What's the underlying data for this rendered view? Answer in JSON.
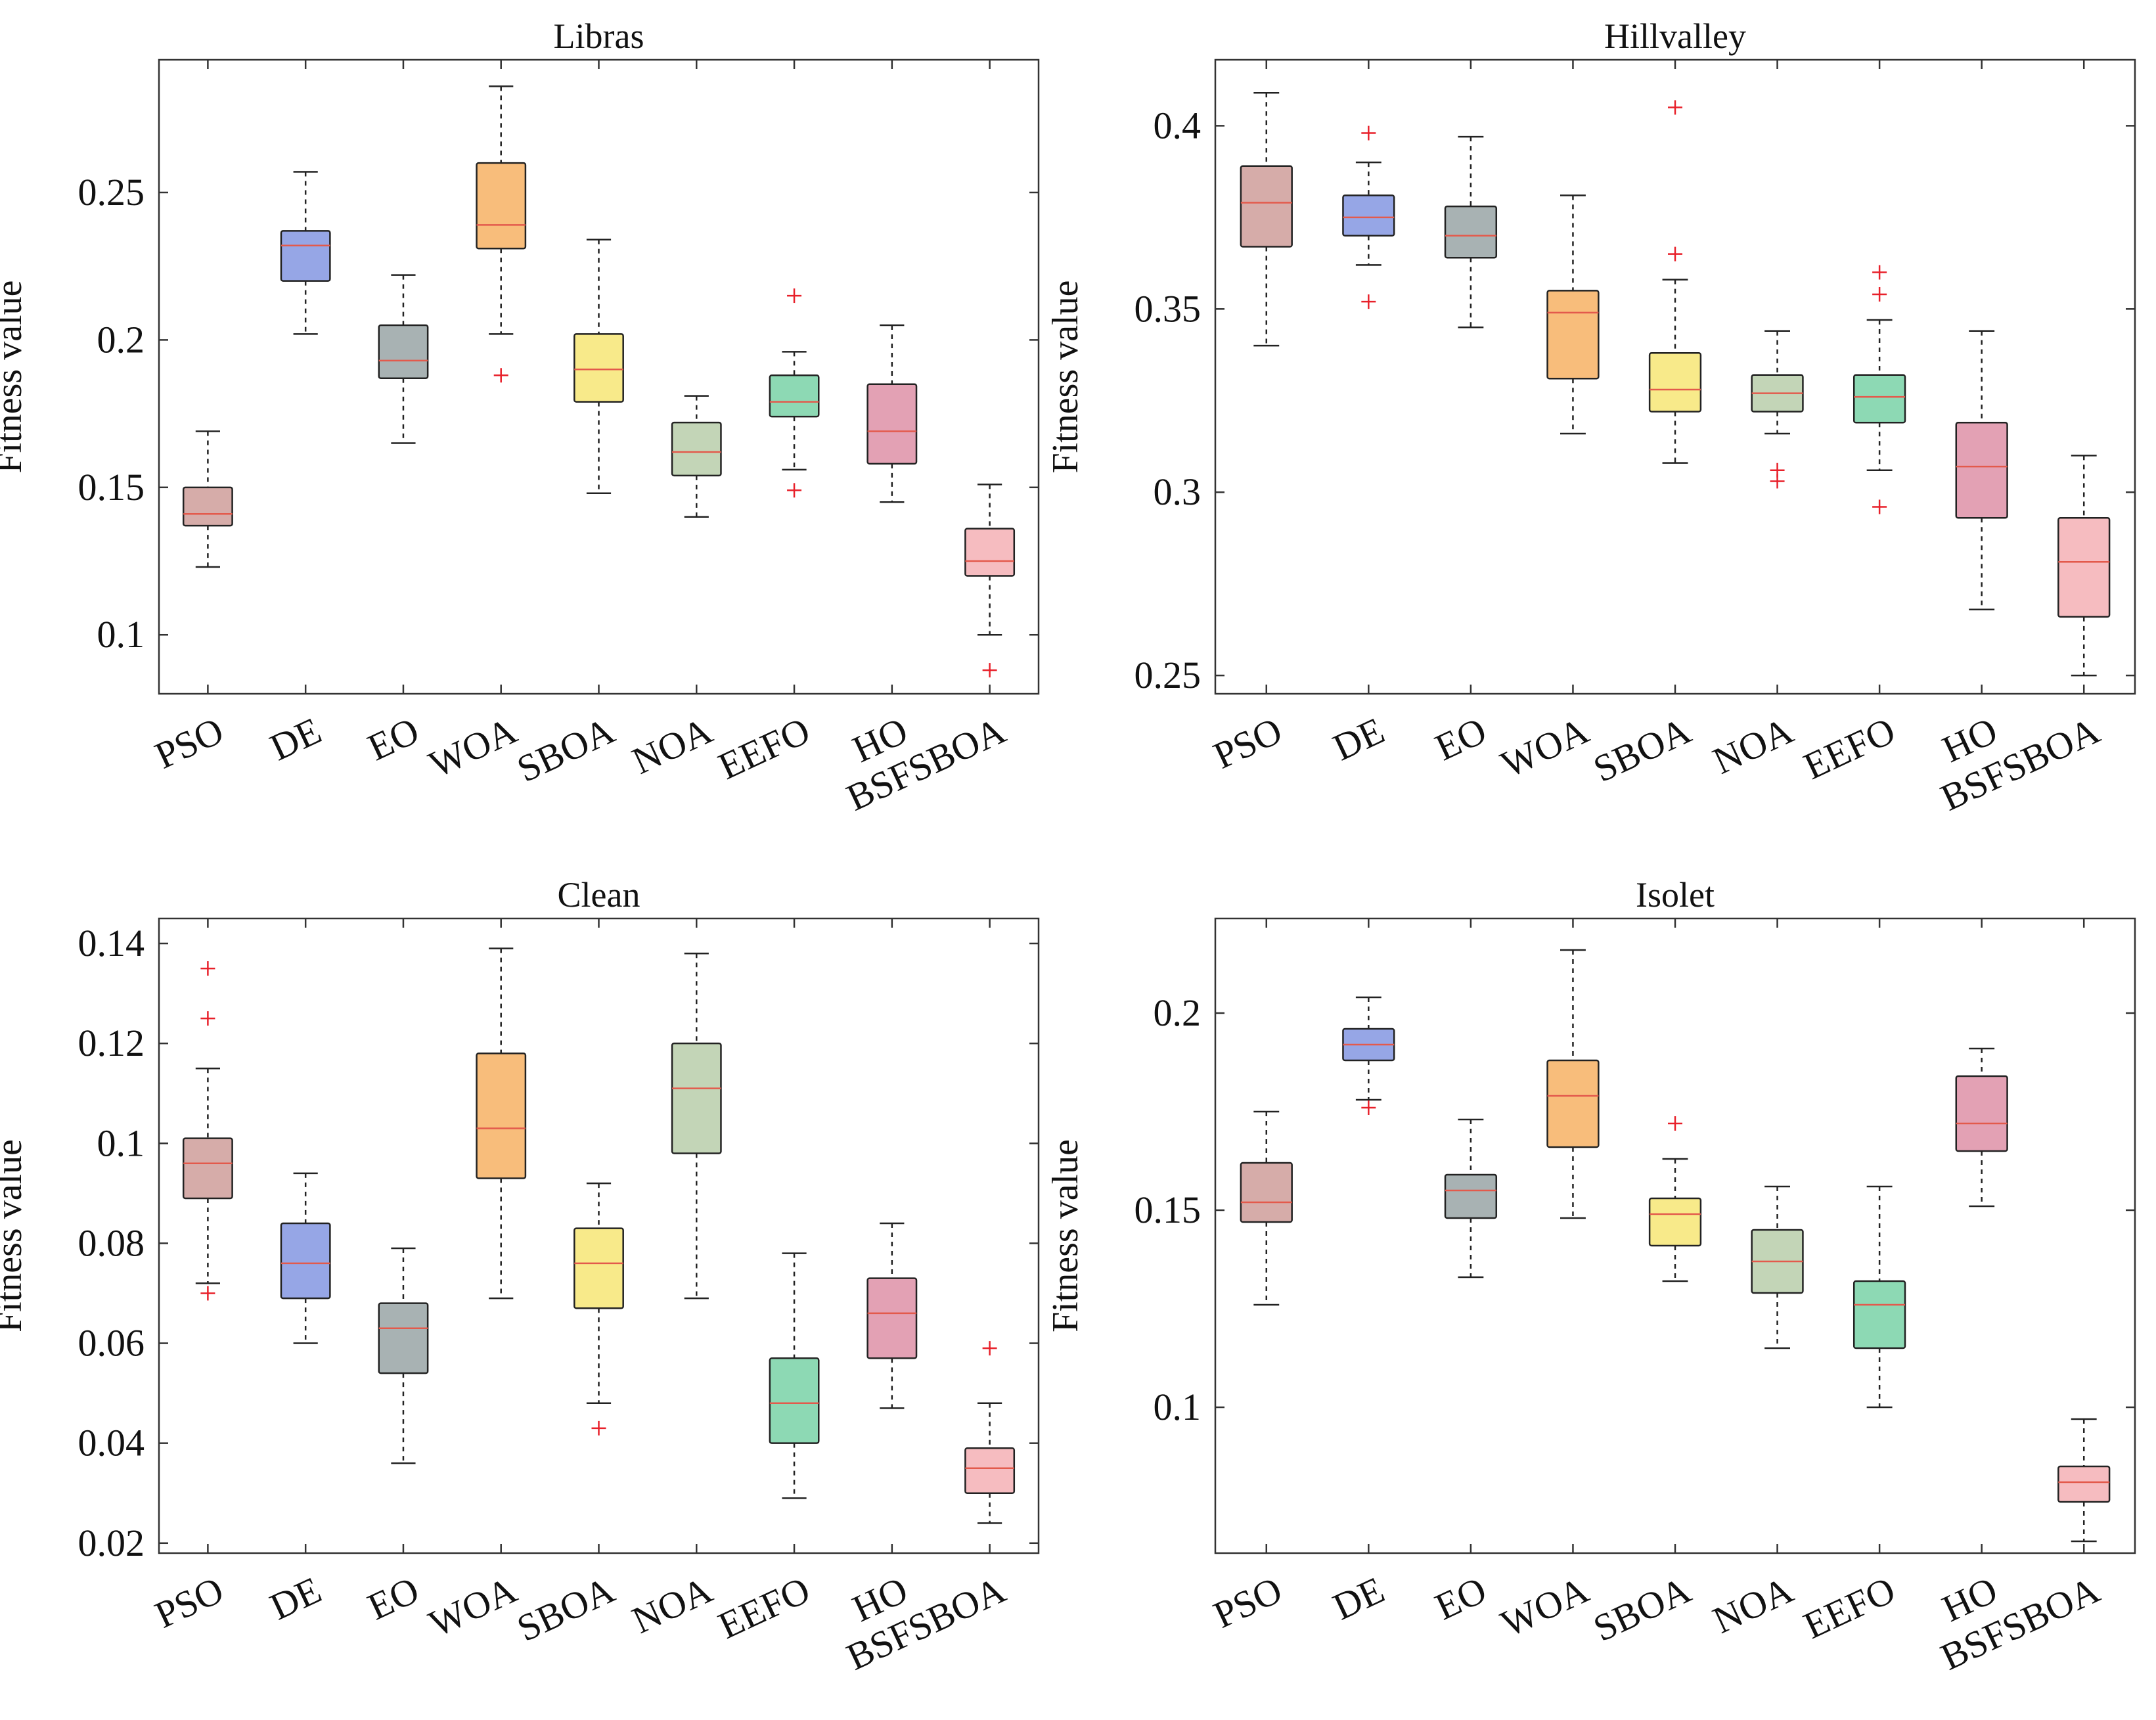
{
  "figure": {
    "ylabel": "Fitness value"
  },
  "chart_data": [
    {
      "type": "box",
      "title": "Libras",
      "ylabel": "Fitness value",
      "ylim": [
        0.08,
        0.295
      ],
      "yticks": [
        0.1,
        0.15,
        0.2,
        0.25
      ],
      "ytick_labels": [
        "0.1",
        "0.15",
        "0.2",
        "0.25"
      ],
      "categories": [
        "PSO",
        "DE",
        "EO",
        "WOA",
        "SBOA",
        "NOA",
        "EEFO",
        "HO",
        "BSFSBOA"
      ],
      "boxes": [
        {
          "name": "PSO",
          "whisker_low": 0.123,
          "q1": 0.137,
          "median": 0.141,
          "q3": 0.15,
          "whisker_high": 0.169,
          "outliers": []
        },
        {
          "name": "DE",
          "whisker_low": 0.202,
          "q1": 0.22,
          "median": 0.232,
          "q3": 0.237,
          "whisker_high": 0.257,
          "outliers": []
        },
        {
          "name": "EO",
          "whisker_low": 0.165,
          "q1": 0.187,
          "median": 0.193,
          "q3": 0.205,
          "whisker_high": 0.222,
          "outliers": []
        },
        {
          "name": "WOA",
          "whisker_low": 0.202,
          "q1": 0.231,
          "median": 0.239,
          "q3": 0.26,
          "whisker_high": 0.286,
          "outliers": [
            0.188
          ]
        },
        {
          "name": "SBOA",
          "whisker_low": 0.148,
          "q1": 0.179,
          "median": 0.19,
          "q3": 0.202,
          "whisker_high": 0.234,
          "outliers": []
        },
        {
          "name": "NOA",
          "whisker_low": 0.14,
          "q1": 0.154,
          "median": 0.162,
          "q3": 0.172,
          "whisker_high": 0.181,
          "outliers": []
        },
        {
          "name": "EEFO",
          "whisker_low": 0.156,
          "q1": 0.174,
          "median": 0.179,
          "q3": 0.188,
          "whisker_high": 0.196,
          "outliers": [
            0.215,
            0.149
          ]
        },
        {
          "name": "HO",
          "whisker_low": 0.145,
          "q1": 0.158,
          "median": 0.169,
          "q3": 0.185,
          "whisker_high": 0.205,
          "outliers": []
        },
        {
          "name": "BSFSBOA",
          "whisker_low": 0.1,
          "q1": 0.12,
          "median": 0.125,
          "q3": 0.136,
          "whisker_high": 0.151,
          "outliers": [
            0.088
          ]
        }
      ]
    },
    {
      "type": "box",
      "title": "Hillvalley",
      "ylabel": "Fitness value",
      "ylim": [
        0.245,
        0.418
      ],
      "yticks": [
        0.25,
        0.3,
        0.35,
        0.4
      ],
      "ytick_labels": [
        "0.25",
        "0.3",
        "0.35",
        "0.4"
      ],
      "categories": [
        "PSO",
        "DE",
        "EO",
        "WOA",
        "SBOA",
        "NOA",
        "EEFO",
        "HO",
        "BSFSBOA"
      ],
      "boxes": [
        {
          "name": "PSO",
          "whisker_low": 0.34,
          "q1": 0.367,
          "median": 0.379,
          "q3": 0.389,
          "whisker_high": 0.409,
          "outliers": []
        },
        {
          "name": "DE",
          "whisker_low": 0.362,
          "q1": 0.37,
          "median": 0.375,
          "q3": 0.381,
          "whisker_high": 0.39,
          "outliers": [
            0.398,
            0.352
          ]
        },
        {
          "name": "EO",
          "whisker_low": 0.345,
          "q1": 0.364,
          "median": 0.37,
          "q3": 0.378,
          "whisker_high": 0.397,
          "outliers": []
        },
        {
          "name": "WOA",
          "whisker_low": 0.316,
          "q1": 0.331,
          "median": 0.349,
          "q3": 0.355,
          "whisker_high": 0.381,
          "outliers": []
        },
        {
          "name": "SBOA",
          "whisker_low": 0.308,
          "q1": 0.322,
          "median": 0.328,
          "q3": 0.338,
          "whisker_high": 0.358,
          "outliers": [
            0.405,
            0.365
          ]
        },
        {
          "name": "NOA",
          "whisker_low": 0.316,
          "q1": 0.322,
          "median": 0.327,
          "q3": 0.332,
          "whisker_high": 0.344,
          "outliers": [
            0.306,
            0.303
          ]
        },
        {
          "name": "EEFO",
          "whisker_low": 0.306,
          "q1": 0.319,
          "median": 0.326,
          "q3": 0.332,
          "whisker_high": 0.347,
          "outliers": [
            0.36,
            0.354,
            0.296
          ]
        },
        {
          "name": "HO",
          "whisker_low": 0.268,
          "q1": 0.293,
          "median": 0.307,
          "q3": 0.319,
          "whisker_high": 0.344,
          "outliers": []
        },
        {
          "name": "BSFSBOA",
          "whisker_low": 0.25,
          "q1": 0.266,
          "median": 0.281,
          "q3": 0.293,
          "whisker_high": 0.31,
          "outliers": []
        }
      ]
    },
    {
      "type": "box",
      "title": "Clean",
      "ylabel": "Fitness value",
      "ylim": [
        0.018,
        0.145
      ],
      "yticks": [
        0.02,
        0.04,
        0.06,
        0.08,
        0.1,
        0.12,
        0.14
      ],
      "ytick_labels": [
        "0.02",
        "0.04",
        "0.06",
        "0.08",
        "0.1",
        "0.12",
        "0.14"
      ],
      "categories": [
        "PSO",
        "DE",
        "EO",
        "WOA",
        "SBOA",
        "NOA",
        "EEFO",
        "HO",
        "BSFSBOA"
      ],
      "boxes": [
        {
          "name": "PSO",
          "whisker_low": 0.072,
          "q1": 0.089,
          "median": 0.096,
          "q3": 0.101,
          "whisker_high": 0.115,
          "outliers": [
            0.135,
            0.125,
            0.07
          ]
        },
        {
          "name": "DE",
          "whisker_low": 0.06,
          "q1": 0.069,
          "median": 0.076,
          "q3": 0.084,
          "whisker_high": 0.094,
          "outliers": []
        },
        {
          "name": "EO",
          "whisker_low": 0.036,
          "q1": 0.054,
          "median": 0.063,
          "q3": 0.068,
          "whisker_high": 0.079,
          "outliers": []
        },
        {
          "name": "WOA",
          "whisker_low": 0.069,
          "q1": 0.093,
          "median": 0.103,
          "q3": 0.118,
          "whisker_high": 0.139,
          "outliers": []
        },
        {
          "name": "SBOA",
          "whisker_low": 0.048,
          "q1": 0.067,
          "median": 0.076,
          "q3": 0.083,
          "whisker_high": 0.092,
          "outliers": [
            0.043
          ]
        },
        {
          "name": "NOA",
          "whisker_low": 0.069,
          "q1": 0.098,
          "median": 0.111,
          "q3": 0.12,
          "whisker_high": 0.138,
          "outliers": []
        },
        {
          "name": "EEFO",
          "whisker_low": 0.029,
          "q1": 0.04,
          "median": 0.048,
          "q3": 0.057,
          "whisker_high": 0.078,
          "outliers": []
        },
        {
          "name": "HO",
          "whisker_low": 0.047,
          "q1": 0.057,
          "median": 0.066,
          "q3": 0.073,
          "whisker_high": 0.084,
          "outliers": []
        },
        {
          "name": "BSFSBOA",
          "whisker_low": 0.024,
          "q1": 0.03,
          "median": 0.035,
          "q3": 0.039,
          "whisker_high": 0.048,
          "outliers": [
            0.059
          ]
        }
      ]
    },
    {
      "type": "box",
      "title": "Isolet",
      "ylabel": "Fitness value",
      "ylim": [
        0.063,
        0.224
      ],
      "yticks": [
        0.1,
        0.15,
        0.2
      ],
      "ytick_labels": [
        "0.1",
        "0.15",
        "0.2"
      ],
      "categories": [
        "PSO",
        "DE",
        "EO",
        "WOA",
        "SBOA",
        "NOA",
        "EEFO",
        "HO",
        "BSFSBOA"
      ],
      "boxes": [
        {
          "name": "PSO",
          "whisker_low": 0.126,
          "q1": 0.147,
          "median": 0.152,
          "q3": 0.162,
          "whisker_high": 0.175,
          "outliers": []
        },
        {
          "name": "DE",
          "whisker_low": 0.178,
          "q1": 0.188,
          "median": 0.192,
          "q3": 0.196,
          "whisker_high": 0.204,
          "outliers": [
            0.176
          ]
        },
        {
          "name": "EO",
          "whisker_low": 0.133,
          "q1": 0.148,
          "median": 0.155,
          "q3": 0.159,
          "whisker_high": 0.173,
          "outliers": []
        },
        {
          "name": "WOA",
          "whisker_low": 0.148,
          "q1": 0.166,
          "median": 0.179,
          "q3": 0.188,
          "whisker_high": 0.216,
          "outliers": []
        },
        {
          "name": "SBOA",
          "whisker_low": 0.132,
          "q1": 0.141,
          "median": 0.149,
          "q3": 0.153,
          "whisker_high": 0.163,
          "outliers": [
            0.172
          ]
        },
        {
          "name": "NOA",
          "whisker_low": 0.115,
          "q1": 0.129,
          "median": 0.137,
          "q3": 0.145,
          "whisker_high": 0.156,
          "outliers": []
        },
        {
          "name": "EEFO",
          "whisker_low": 0.1,
          "q1": 0.115,
          "median": 0.126,
          "q3": 0.132,
          "whisker_high": 0.156,
          "outliers": []
        },
        {
          "name": "HO",
          "whisker_low": 0.151,
          "q1": 0.165,
          "median": 0.172,
          "q3": 0.184,
          "whisker_high": 0.191,
          "outliers": []
        },
        {
          "name": "BSFSBOA",
          "whisker_low": 0.066,
          "q1": 0.076,
          "median": 0.081,
          "q3": 0.085,
          "whisker_high": 0.097,
          "outliers": []
        }
      ]
    }
  ],
  "colors": {
    "PSO": "#d6aca9",
    "DE": "#96a6e6",
    "EO": "#a8b2b3",
    "WOA": "#f8bd7b",
    "SBOA": "#f8ea8a",
    "NOA": "#c3d5b7",
    "EEFO": "#8dd9b4",
    "HO": "#e3a1b4",
    "BSFSBOA": "#f6bcc0",
    "median": "#e35a4c",
    "outlier": "#e8202a",
    "axis": "#333333"
  }
}
